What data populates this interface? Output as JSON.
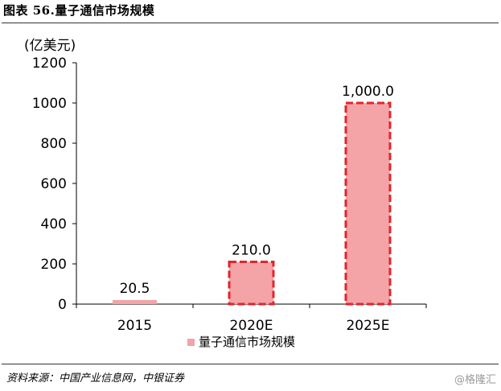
{
  "figure_title": "图表 56.量子通信市场规模",
  "source_text": "资料来源：中国产业信息网，中银证券",
  "watermark": "@格隆汇",
  "chart_data": {
    "type": "bar",
    "categories": [
      "2015",
      "2020E",
      "2025E"
    ],
    "series": [
      {
        "name": "量子通信市场规模",
        "values": [
          20.5,
          210.0,
          1000.0
        ]
      }
    ],
    "data_labels": [
      "20.5",
      "210.0",
      "1,000.0"
    ],
    "unit_label": "(亿美元)",
    "ylim": [
      0,
      1200
    ],
    "yticks": [
      0,
      200,
      400,
      600,
      800,
      1000,
      1200
    ],
    "grid": false,
    "legend": "bottom",
    "bar_fill": "#f4a3a6",
    "bar_border": "#e0262b"
  }
}
